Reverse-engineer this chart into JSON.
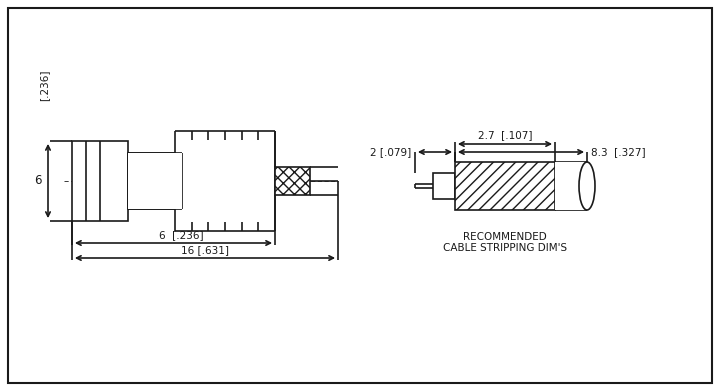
{
  "bg_color": "#ffffff",
  "line_color": "#1a1a1a",
  "text_color": "#1a1a1a",
  "dim_6_236_label": "6  [.236]",
  "dim_16_631_label": "16 [.631]",
  "dim_6_vert_label": "6",
  "dim_6_vert_bracket": "[.236]",
  "dim_2_079_label": "2 [.079]",
  "dim_27_107_label": "2.7  [.107]",
  "dim_83_327_label": "8.3  [.327]",
  "cable_label_line1": "RECOMMENDED",
  "cable_label_line2": "CABLE STRIPPING DIM'S",
  "font_size": 7.5,
  "lw": 1.2
}
